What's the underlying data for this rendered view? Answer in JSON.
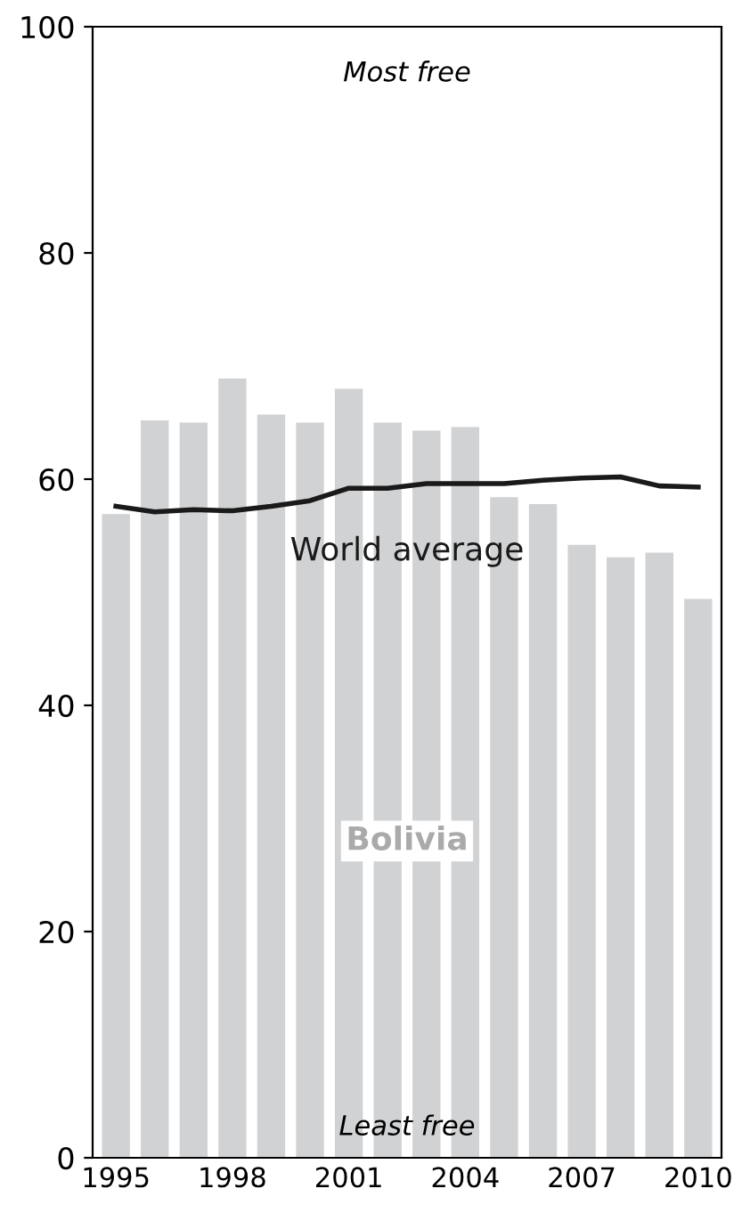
{
  "chart_data": {
    "type": "bar",
    "categories": [
      "1995",
      null,
      null,
      "1998",
      null,
      null,
      "2001",
      null,
      null,
      "2004",
      null,
      null,
      "2007",
      null,
      null,
      "2010"
    ],
    "series": [
      {
        "name": "Bolivia",
        "color": "#d1d2d4",
        "values": [
          56.9,
          65.2,
          65.0,
          68.9,
          65.7,
          65.0,
          68.0,
          65.0,
          64.3,
          64.6,
          58.4,
          57.8,
          54.2,
          53.1,
          53.5,
          49.4
        ]
      },
      {
        "name": "World average",
        "type": "line",
        "color": "#1a1a1a",
        "values": [
          57.6,
          57.1,
          57.3,
          57.2,
          57.6,
          58.1,
          59.2,
          59.2,
          59.6,
          59.6,
          59.6,
          59.9,
          60.1,
          60.2,
          59.4,
          59.3
        ]
      }
    ],
    "ylim": [
      0,
      100
    ],
    "yticks": [
      0,
      20,
      40,
      60,
      80,
      100
    ],
    "annotations": [
      "Most free",
      "Least free"
    ],
    "grid": false,
    "legend": false
  }
}
